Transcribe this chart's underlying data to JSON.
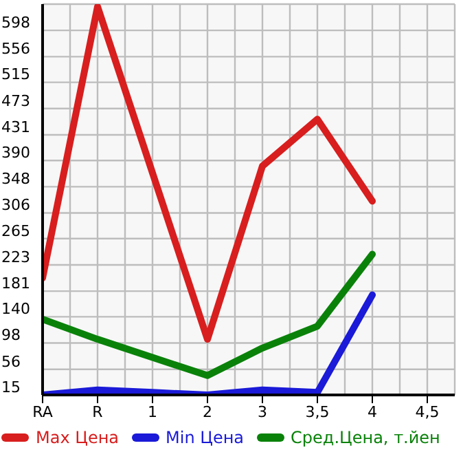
{
  "chart_data": {
    "type": "line",
    "categories": [
      "RA",
      "R",
      "1",
      "2",
      "3",
      "3,5",
      "4",
      "4,5"
    ],
    "series": [
      {
        "name": "Max Цена",
        "color": "#d81e1e",
        "values": [
          202,
          636,
          370,
          104,
          381,
          456,
          325,
          null
        ]
      },
      {
        "name": "Min Цена",
        "color": "#1a1ad8",
        "values": [
          15,
          23,
          19,
          15,
          23,
          19,
          175,
          null
        ]
      },
      {
        "name": "Сред.Цена, т.йен",
        "color": "#0a820a",
        "values": [
          136,
          104,
          75,
          46,
          90,
          125,
          240,
          null
        ]
      }
    ],
    "ylim": [
      15,
      640
    ],
    "yticks": [
      15,
      56,
      98,
      140,
      181,
      223,
      265,
      306,
      348,
      390,
      431,
      473,
      515,
      556,
      598
    ],
    "grid": true,
    "legend": "bottom",
    "marker": "none",
    "line_style": "solid"
  }
}
